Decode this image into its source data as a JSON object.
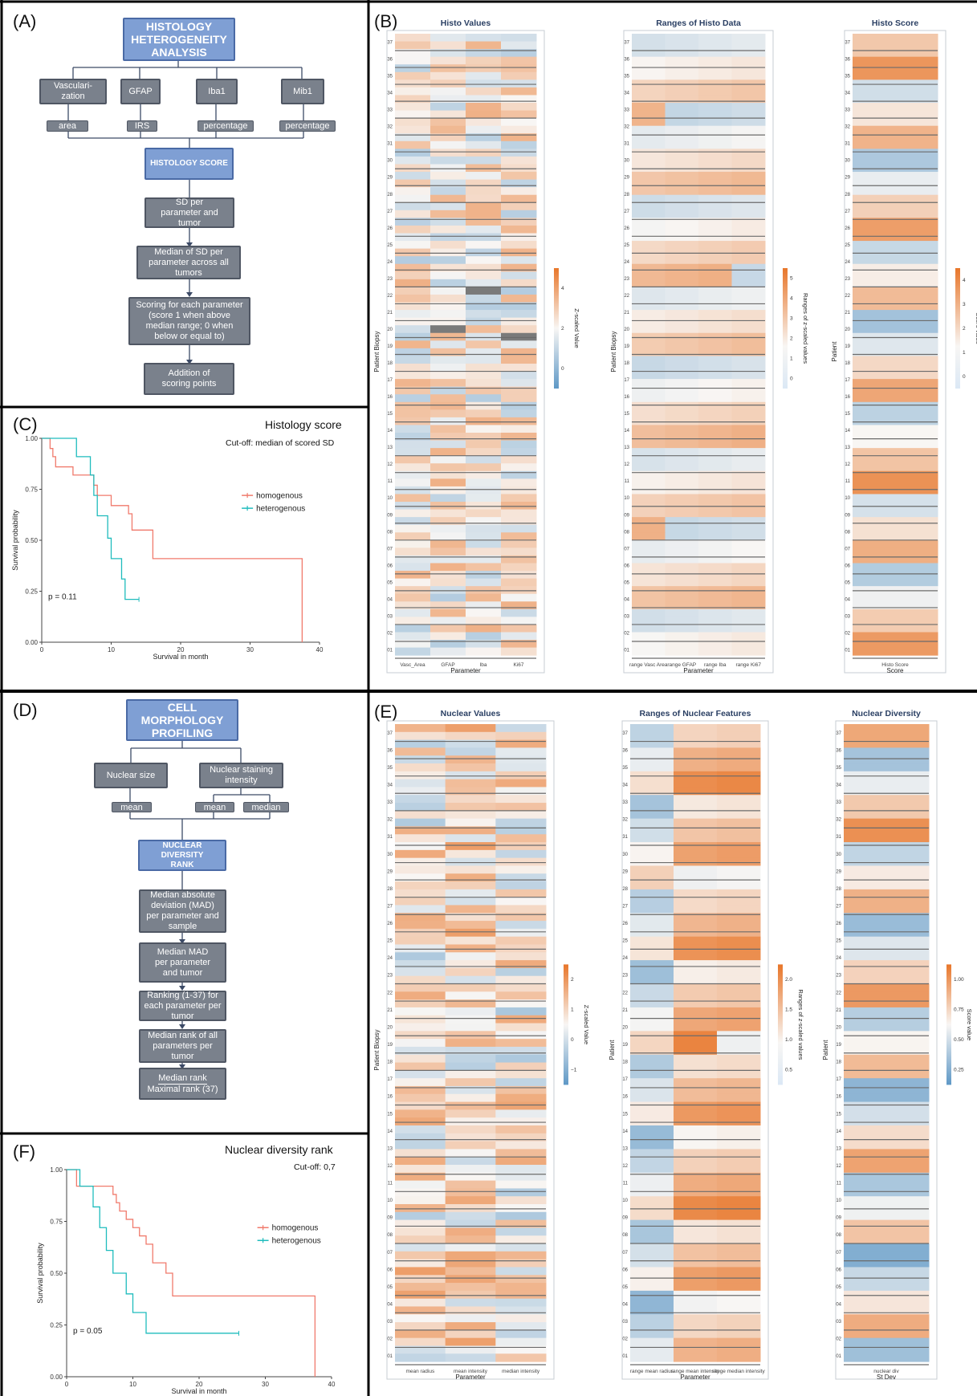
{
  "panels": {
    "A": {
      "label": "(A)",
      "title": "HISTOLOGY HETEROGENEITY ANALYSIS",
      "params": [
        "Vasculari-zation",
        "GFAP",
        "Iba1",
        "Mib1"
      ],
      "subs": [
        "area",
        "IRS",
        "percentage",
        "percentage"
      ],
      "score_box": "HISTOLOGY SCORE",
      "steps": [
        "SD per parameter and tumor",
        "Median of SD per parameter across all tumors",
        "Scoring for each parameter (score 1 when above median range; 0 when below or equal to)",
        "Addition of scoring points"
      ]
    },
    "B": {
      "label": "(B)"
    },
    "C": {
      "label": "(C)",
      "title": "Histology score",
      "subtitle": "Cut-off: median of scored SD",
      "pvalue": "p = 0.11"
    },
    "D": {
      "label": "(D)",
      "title": "CELL MORPHOLOGY PROFILING",
      "params": [
        "Nuclear size",
        "Nuclear staining intensity"
      ],
      "subs": [
        "mean",
        "mean",
        "median"
      ],
      "score_box": "NUCLEAR DIVERSITY RANK",
      "steps": [
        "Median absolute deviation (MAD) per parameter and sample",
        "Median MAD per parameter and tumor",
        "Ranking (1-37) for each parameter per tumor",
        "Median rank of all parameters per tumor"
      ],
      "fraction_num": "Median rank",
      "fraction_den": "Maximal rank (37)"
    },
    "E": {
      "label": "(E)"
    },
    "F": {
      "label": "(F)",
      "title": "Nuclear diversity rank",
      "subtitle": "Cut-off: 0,7",
      "pvalue": "p = 0.05"
    }
  },
  "colors": {
    "homogenous": "#f07a6c",
    "heterogenous": "#1fbcbd",
    "hm_low": "#5e98c6",
    "hm_mid": "#f8f6f4",
    "hm_high": "#e8762a",
    "na": "#7a7a7a"
  },
  "patients": [
    "01",
    "02",
    "03",
    "04",
    "05",
    "06",
    "07",
    "08",
    "09",
    "10",
    "11",
    "12",
    "13",
    "14",
    "15",
    "16",
    "17",
    "18",
    "19",
    "20",
    "21",
    "22",
    "23",
    "24",
    "25",
    "26",
    "27",
    "28",
    "29",
    "30",
    "31",
    "32",
    "33",
    "34",
    "35",
    "36",
    "37"
  ],
  "heatmaps": {
    "histo_values": {
      "title": "Histo Values",
      "ylabel": "Patient Biopsy",
      "xlabel": "Parameter",
      "cols": [
        "Vasc_Area",
        "GFAP",
        "Iba",
        "Ki67"
      ],
      "legend_title": "Z-scaled Value",
      "legend_ticks": [
        "4",
        "2",
        "0"
      ]
    },
    "histo_ranges": {
      "title": "Ranges of Histo Data",
      "ylabel": "Patient Biopsy",
      "xlabel": "Parameter",
      "cols": [
        "range Vasc Area",
        "range GFAP",
        "range Iba",
        "range Ki67"
      ],
      "legend_title": "Ranges of z-scaled values",
      "legend_ticks": [
        "5",
        "4",
        "3",
        "2",
        "1",
        "0"
      ]
    },
    "histo_score": {
      "title": "Histo Score",
      "ylabel": "Patient",
      "xlabel": "Score",
      "cols": [
        "Histo Score"
      ],
      "legend_title": "Score value",
      "legend_ticks": [
        "4",
        "3",
        "2",
        "1",
        "0"
      ]
    },
    "nuc_values": {
      "title": "Nuclear Values",
      "ylabel": "Patient Biopsy",
      "xlabel": "Parameter",
      "cols": [
        "mean radius",
        "mean intensity",
        "median intensity"
      ],
      "legend_title": "Z-scaled Value",
      "legend_ticks": [
        "2",
        "1",
        "0",
        "−1"
      ]
    },
    "nuc_ranges": {
      "title": "Ranges of Nuclear Features",
      "ylabel": "Patient",
      "xlabel": "Parameter",
      "cols": [
        "range mean radius",
        "range mean intensity",
        "range median intensity"
      ],
      "legend_title": "Ranges of z-scaled values",
      "legend_ticks": [
        "2.0",
        "1.5",
        "1.0",
        "0.5"
      ]
    },
    "nuc_div": {
      "title": "Nuclear Diversity",
      "ylabel": "Patient",
      "xlabel": "St Dev",
      "cols": [
        "nuclear div"
      ],
      "legend_title": "Score value",
      "legend_ticks": [
        "1.00",
        "0.75",
        "0.50",
        "0.25"
      ]
    }
  },
  "chart_data": [
    {
      "type": "line",
      "title": "Histology score",
      "subtitle": "Cut-off: median of scored SD",
      "xlabel": "Survival in month",
      "ylabel": "Survival probability",
      "xlim": [
        0,
        40
      ],
      "ylim": [
        0,
        1
      ],
      "xticks": [
        "0",
        "10",
        "20",
        "30",
        "40"
      ],
      "yticks": [
        "0.00",
        "0.25",
        "0.50",
        "0.75",
        "1.00"
      ],
      "legend_placement": "right",
      "series": [
        {
          "name": "homogenous",
          "x": [
            0,
            1,
            1.2,
            1.6,
            2,
            4.5,
            7,
            7.5,
            8,
            10,
            12.5,
            13,
            16,
            37.5,
            37.5
          ],
          "y": [
            1,
            1,
            0.95,
            0.91,
            0.86,
            0.82,
            0.82,
            0.77,
            0.72,
            0.67,
            0.63,
            0.55,
            0.41,
            0.41,
            0
          ]
        },
        {
          "name": "heterogenous",
          "x": [
            0,
            4.5,
            5,
            7,
            7.5,
            8,
            9.5,
            10,
            11.5,
            12,
            14
          ],
          "y": [
            1,
            1,
            0.91,
            0.82,
            0.72,
            0.62,
            0.51,
            0.41,
            0.31,
            0.21,
            0.21
          ]
        }
      ],
      "pvalue": "p = 0.11"
    },
    {
      "type": "line",
      "title": "Nuclear diversity rank",
      "subtitle": "Cut-off: 0,7",
      "xlabel": "Survival in month",
      "ylabel": "Survival probability",
      "xlim": [
        0,
        40
      ],
      "ylim": [
        0,
        1
      ],
      "xticks": [
        "0",
        "10",
        "20",
        "30",
        "40"
      ],
      "yticks": [
        "0.00",
        "0.25",
        "0.50",
        "0.75",
        "1.00"
      ],
      "legend_placement": "right",
      "series": [
        {
          "name": "homogenous",
          "x": [
            0,
            1,
            1.5,
            6,
            7,
            7.5,
            8,
            9,
            10,
            11,
            12,
            13,
            15,
            16,
            37.5,
            37.5
          ],
          "y": [
            1,
            1,
            0.92,
            0.92,
            0.88,
            0.84,
            0.8,
            0.76,
            0.72,
            0.68,
            0.64,
            0.55,
            0.5,
            0.39,
            0.39,
            0
          ]
        },
        {
          "name": "heterogenous",
          "x": [
            0,
            1.5,
            2,
            4,
            5,
            6,
            7,
            9,
            10,
            12,
            26
          ],
          "y": [
            1,
            1,
            0.92,
            0.82,
            0.72,
            0.61,
            0.5,
            0.4,
            0.31,
            0.21,
            0.21
          ]
        }
      ],
      "pvalue": "p = 0.05"
    }
  ]
}
